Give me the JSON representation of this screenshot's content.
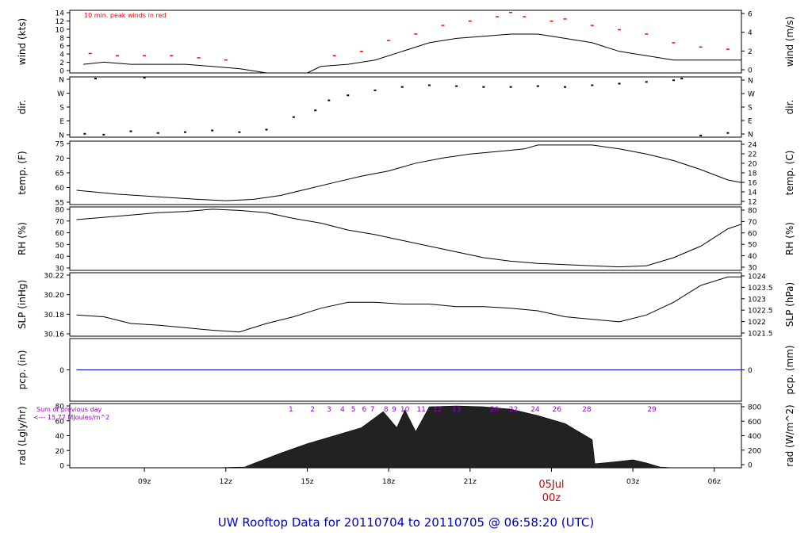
{
  "title": "UW Rooftop Data for 20110704  to  20110705 @ 06:58:20  (UTC)",
  "x_axis": {
    "tick_labels": [
      "09z",
      "12z",
      "15z",
      "18z",
      "21z",
      "03z",
      "06z"
    ],
    "date_label": "05Jul",
    "date_label_hour": "00z"
  },
  "chart_data": [
    {
      "type": "line",
      "panel": "wind",
      "ylabel_left": "wind (kts)",
      "ylabel_right": "wind (m/s)",
      "yticks_left": [
        "0",
        "2",
        "4",
        "6",
        "8",
        "10",
        "12",
        "14"
      ],
      "yticks_right": [
        "0",
        "2",
        "4",
        "6"
      ],
      "ylim": [
        0,
        14.5
      ],
      "annotation": "10 min. peak winds in red",
      "series": [
        {
          "values": [
            {
              "x": 6.75,
              "y": 2
            },
            {
              "x": 7.5,
              "y": 2.5
            },
            {
              "x": 8.5,
              "y": 2
            },
            {
              "x": 9.5,
              "y": 2
            },
            {
              "x": 10.5,
              "y": 2
            },
            {
              "x": 11.5,
              "y": 1.5
            },
            {
              "x": 12.5,
              "y": 1
            },
            {
              "x": 13.0,
              "y": 0.5
            },
            {
              "x": 13.5,
              "y": 0
            },
            {
              "x": 15.0,
              "y": 0
            },
            {
              "x": 15.5,
              "y": 1.5
            },
            {
              "x": 16.5,
              "y": 2
            },
            {
              "x": 17.5,
              "y": 3
            },
            {
              "x": 18.5,
              "y": 5
            },
            {
              "x": 19.5,
              "y": 7
            },
            {
              "x": 20.5,
              "y": 8
            },
            {
              "x": 21.5,
              "y": 8.5
            },
            {
              "x": 22.5,
              "y": 9
            },
            {
              "x": 23.5,
              "y": 9
            },
            {
              "x": 24.5,
              "y": 8
            },
            {
              "x": 25.5,
              "y": 7
            },
            {
              "x": 26.5,
              "y": 5
            },
            {
              "x": 27.5,
              "y": 4
            },
            {
              "x": 28.5,
              "y": 3
            },
            {
              "x": 29.5,
              "y": 3
            },
            {
              "x": 30.5,
              "y": 3
            },
            {
              "x": 31.0,
              "y": 3
            }
          ]
        },
        {
          "values": [
            {
              "x": 7.0,
              "y": 4.5
            },
            {
              "x": 8.0,
              "y": 4
            },
            {
              "x": 9.0,
              "y": 4
            },
            {
              "x": 10.0,
              "y": 4
            },
            {
              "x": 11.0,
              "y": 3.5
            },
            {
              "x": 12.0,
              "y": 3
            },
            {
              "x": 16.0,
              "y": 4
            },
            {
              "x": 17.0,
              "y": 5
            },
            {
              "x": 18.0,
              "y": 7.5
            },
            {
              "x": 19.0,
              "y": 9
            },
            {
              "x": 20.0,
              "y": 11
            },
            {
              "x": 21.0,
              "y": 12
            },
            {
              "x": 22.0,
              "y": 13
            },
            {
              "x": 22.5,
              "y": 14
            },
            {
              "x": 23.0,
              "y": 13
            },
            {
              "x": 24.0,
              "y": 12
            },
            {
              "x": 24.5,
              "y": 12.5
            },
            {
              "x": 25.5,
              "y": 11
            },
            {
              "x": 26.5,
              "y": 10
            },
            {
              "x": 27.5,
              "y": 9
            },
            {
              "x": 28.5,
              "y": 7
            },
            {
              "x": 29.5,
              "y": 6
            },
            {
              "x": 30.5,
              "y": 5.5
            }
          ]
        }
      ]
    },
    {
      "type": "scatter",
      "panel": "dir",
      "ylabel_left": "dir.",
      "ylabel_right": "dir.",
      "yticks_left": [
        "N",
        "E",
        "S",
        "W",
        "N"
      ],
      "yticks_right": [
        "N",
        "E",
        "S",
        "W",
        "N"
      ],
      "ylim": [
        0,
        360
      ],
      "values": [
        {
          "x": 6.8,
          "y": 20
        },
        {
          "x": 7.5,
          "y": 15
        },
        {
          "x": 8.5,
          "y": 35
        },
        {
          "x": 9.5,
          "y": 25
        },
        {
          "x": 10.5,
          "y": 30
        },
        {
          "x": 11.5,
          "y": 40
        },
        {
          "x": 12.5,
          "y": 30
        },
        {
          "x": 13.5,
          "y": 45
        },
        {
          "x": 14.5,
          "y": 120
        },
        {
          "x": 15.3,
          "y": 160
        },
        {
          "x": 15.8,
          "y": 220
        },
        {
          "x": 16.5,
          "y": 250
        },
        {
          "x": 17.5,
          "y": 280
        },
        {
          "x": 18.5,
          "y": 300
        },
        {
          "x": 19.5,
          "y": 310
        },
        {
          "x": 20.5,
          "y": 305
        },
        {
          "x": 21.5,
          "y": 300
        },
        {
          "x": 22.5,
          "y": 300
        },
        {
          "x": 23.5,
          "y": 305
        },
        {
          "x": 24.5,
          "y": 300
        },
        {
          "x": 25.5,
          "y": 310
        },
        {
          "x": 26.5,
          "y": 320
        },
        {
          "x": 27.5,
          "y": 330
        },
        {
          "x": 28.5,
          "y": 340
        },
        {
          "x": 29.5,
          "y": 10
        },
        {
          "x": 30.5,
          "y": 25
        },
        {
          "x": 7.2,
          "y": 350
        },
        {
          "x": 9.0,
          "y": 355
        },
        {
          "x": 28.8,
          "y": 350
        }
      ]
    },
    {
      "type": "line",
      "panel": "temp",
      "ylabel_left": "temp. (F)",
      "ylabel_right": "temp. (C)",
      "yticks_left": [
        "55",
        "60",
        "65",
        "70",
        "75"
      ],
      "yticks_right": [
        "12",
        "14",
        "16",
        "18",
        "20",
        "22",
        "24"
      ],
      "ylim": [
        51.5,
        76
      ],
      "series": [
        {
          "values": [
            {
              "x": 6.5,
              "y": 57
            },
            {
              "x": 8.0,
              "y": 55.5
            },
            {
              "x": 9.5,
              "y": 54.5
            },
            {
              "x": 11.0,
              "y": 53.5
            },
            {
              "x": 12.0,
              "y": 53
            },
            {
              "x": 13.0,
              "y": 53.5
            },
            {
              "x": 14.0,
              "y": 55
            },
            {
              "x": 15.0,
              "y": 57.5
            },
            {
              "x": 16.0,
              "y": 60
            },
            {
              "x": 17.0,
              "y": 62.5
            },
            {
              "x": 18.0,
              "y": 64.5
            },
            {
              "x": 19.0,
              "y": 67.5
            },
            {
              "x": 20.0,
              "y": 69.5
            },
            {
              "x": 21.0,
              "y": 71
            },
            {
              "x": 22.0,
              "y": 72
            },
            {
              "x": 23.0,
              "y": 73
            },
            {
              "x": 23.5,
              "y": 74.5
            },
            {
              "x": 24.5,
              "y": 74.5
            },
            {
              "x": 25.5,
              "y": 74.5
            },
            {
              "x": 26.5,
              "y": 73
            },
            {
              "x": 27.5,
              "y": 71
            },
            {
              "x": 28.5,
              "y": 68.5
            },
            {
              "x": 29.5,
              "y": 65
            },
            {
              "x": 30.5,
              "y": 61
            },
            {
              "x": 31.0,
              "y": 60
            }
          ]
        }
      ]
    },
    {
      "type": "line",
      "panel": "rh",
      "ylabel_left": "RH (%)",
      "ylabel_right": "RH (%)",
      "yticks_left": [
        "30",
        "40",
        "50",
        "60",
        "70",
        "80"
      ],
      "yticks_right": [
        "30",
        "40",
        "50",
        "60",
        "70",
        "80"
      ],
      "ylim": [
        29,
        84
      ],
      "series": [
        {
          "values": [
            {
              "x": 6.5,
              "y": 73
            },
            {
              "x": 7.5,
              "y": 75
            },
            {
              "x": 8.5,
              "y": 77
            },
            {
              "x": 9.5,
              "y": 79
            },
            {
              "x": 10.5,
              "y": 80
            },
            {
              "x": 11.5,
              "y": 82
            },
            {
              "x": 12.5,
              "y": 81
            },
            {
              "x": 13.5,
              "y": 79
            },
            {
              "x": 14.5,
              "y": 74
            },
            {
              "x": 15.5,
              "y": 70
            },
            {
              "x": 16.5,
              "y": 64
            },
            {
              "x": 17.5,
              "y": 60
            },
            {
              "x": 18.5,
              "y": 55
            },
            {
              "x": 19.5,
              "y": 50
            },
            {
              "x": 20.5,
              "y": 45
            },
            {
              "x": 21.5,
              "y": 40
            },
            {
              "x": 22.5,
              "y": 37
            },
            {
              "x": 23.5,
              "y": 35
            },
            {
              "x": 24.5,
              "y": 34
            },
            {
              "x": 25.5,
              "y": 33
            },
            {
              "x": 26.5,
              "y": 32
            },
            {
              "x": 27.5,
              "y": 33
            },
            {
              "x": 28.5,
              "y": 40
            },
            {
              "x": 29.5,
              "y": 50
            },
            {
              "x": 30.5,
              "y": 65
            },
            {
              "x": 31.0,
              "y": 69
            }
          ]
        }
      ]
    },
    {
      "type": "line",
      "panel": "slp",
      "ylabel_left": "SLP (inHg)",
      "ylabel_right": "SLP (hPa)",
      "yticks_left": [
        "30.16",
        "30.18",
        "30.20",
        "30.22"
      ],
      "yticks_right": [
        "1021.5",
        "1022",
        "1022.5",
        "1023",
        "1023.5",
        "1024"
      ],
      "ylim": [
        30.155,
        30.23
      ],
      "series": [
        {
          "values": [
            {
              "x": 6.5,
              "y": 30.18
            },
            {
              "x": 7.5,
              "y": 30.178
            },
            {
              "x": 8.5,
              "y": 30.17
            },
            {
              "x": 9.5,
              "y": 30.168
            },
            {
              "x": 10.5,
              "y": 30.165
            },
            {
              "x": 11.5,
              "y": 30.162
            },
            {
              "x": 12.5,
              "y": 30.16
            },
            {
              "x": 13.5,
              "y": 30.17
            },
            {
              "x": 14.5,
              "y": 30.178
            },
            {
              "x": 15.5,
              "y": 30.188
            },
            {
              "x": 16.5,
              "y": 30.195
            },
            {
              "x": 17.5,
              "y": 30.195
            },
            {
              "x": 18.5,
              "y": 30.193
            },
            {
              "x": 19.5,
              "y": 30.193
            },
            {
              "x": 20.5,
              "y": 30.19
            },
            {
              "x": 21.5,
              "y": 30.19
            },
            {
              "x": 22.5,
              "y": 30.188
            },
            {
              "x": 23.5,
              "y": 30.185
            },
            {
              "x": 24.5,
              "y": 30.178
            },
            {
              "x": 25.5,
              "y": 30.175
            },
            {
              "x": 26.5,
              "y": 30.172
            },
            {
              "x": 27.5,
              "y": 30.18
            },
            {
              "x": 28.5,
              "y": 30.195
            },
            {
              "x": 29.5,
              "y": 30.215
            },
            {
              "x": 30.5,
              "y": 30.225
            },
            {
              "x": 31.0,
              "y": 30.225
            }
          ]
        }
      ]
    },
    {
      "type": "line",
      "panel": "pcp",
      "ylabel_left": "pcp. (in)",
      "ylabel_right": "pcp. (mm)",
      "yticks_left": [
        "0"
      ],
      "yticks_right": [
        "0"
      ],
      "ylim": [
        -1,
        1
      ],
      "series": [
        {
          "values": [
            {
              "x": 6.5,
              "y": 0
            },
            {
              "x": 31.0,
              "y": 0
            }
          ]
        }
      ]
    },
    {
      "type": "area",
      "panel": "rad",
      "ylabel_left": "rad (Lgly/hr)",
      "ylabel_right": "rad (W/m^2)",
      "yticks_left": [
        "0",
        "20",
        "40",
        "60",
        "80"
      ],
      "yticks_right": [
        "0",
        "200",
        "400",
        "600",
        "800"
      ],
      "ylim": [
        0,
        80
      ],
      "annotation_lines": [
        "Sum of previous day",
        "<--- 15.77 MJoules/m^2"
      ],
      "hour_marks": [
        "1",
        "2",
        "3",
        "4",
        "5",
        "6",
        "7",
        "8",
        "9",
        "10",
        "11",
        "12",
        "13",
        "20",
        "22",
        "24",
        "26",
        "28",
        "29"
      ],
      "hour_mark_positions": [
        14.4,
        15.2,
        15.8,
        16.3,
        16.7,
        17.1,
        17.4,
        17.9,
        18.2,
        18.6,
        19.2,
        19.8,
        20.5,
        21.9,
        22.6,
        23.4,
        24.2,
        25.3,
        27.7
      ],
      "series": [
        {
          "values": [
            {
              "x": 6.5,
              "y": 0
            },
            {
              "x": 11.5,
              "y": 0
            },
            {
              "x": 12.7,
              "y": 1
            },
            {
              "x": 13.0,
              "y": 5
            },
            {
              "x": 14.0,
              "y": 18
            },
            {
              "x": 15.0,
              "y": 30
            },
            {
              "x": 16.0,
              "y": 40
            },
            {
              "x": 17.0,
              "y": 50
            },
            {
              "x": 17.8,
              "y": 70
            },
            {
              "x": 18.3,
              "y": 50
            },
            {
              "x": 18.6,
              "y": 72
            },
            {
              "x": 19.0,
              "y": 45
            },
            {
              "x": 19.5,
              "y": 76
            },
            {
              "x": 20.5,
              "y": 77
            },
            {
              "x": 21.5,
              "y": 76
            },
            {
              "x": 22.5,
              "y": 73
            },
            {
              "x": 23.5,
              "y": 65
            },
            {
              "x": 24.5,
              "y": 55
            },
            {
              "x": 25.5,
              "y": 35
            },
            {
              "x": 25.6,
              "y": 5
            },
            {
              "x": 26.5,
              "y": 8
            },
            {
              "x": 27.0,
              "y": 10
            },
            {
              "x": 27.5,
              "y": 6
            },
            {
              "x": 28.0,
              "y": 1
            },
            {
              "x": 28.5,
              "y": 0
            },
            {
              "x": 31.0,
              "y": 0
            }
          ]
        }
      ]
    }
  ],
  "colors": {
    "line": "#000000",
    "peak": "#ff0000",
    "pcp_line": "#0000cc",
    "title": "#0000cc",
    "date_label": "#cc0000",
    "rad_annotation": "#9900cc"
  }
}
